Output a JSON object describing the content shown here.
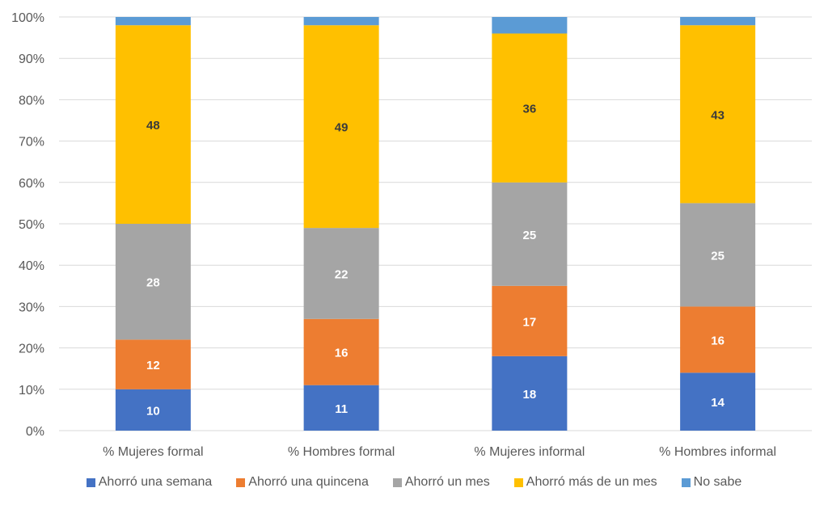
{
  "chart_data": {
    "type": "bar",
    "stacked": true,
    "normalized": true,
    "title": "",
    "xlabel": "",
    "ylabel": "",
    "ylim": [
      0,
      100
    ],
    "y_ticks": [
      "0%",
      "10%",
      "20%",
      "30%",
      "40%",
      "50%",
      "60%",
      "70%",
      "80%",
      "90%",
      "100%"
    ],
    "grid": true,
    "legend_position": "bottom",
    "categories": [
      "% Mujeres formal",
      "% Hombres formal",
      "% Mujeres informal",
      "% Hombres informal"
    ],
    "series": [
      {
        "name": "Ahorró una semana",
        "color": "#4472C4",
        "label_color": "#FFFFFF",
        "show_labels": true,
        "values": [
          10,
          11,
          18,
          14
        ]
      },
      {
        "name": "Ahorró una quincena",
        "color": "#ED7D31",
        "label_color": "#FFFFFF",
        "show_labels": true,
        "values": [
          12,
          16,
          17,
          16
        ]
      },
      {
        "name": "Ahorró un mes",
        "color": "#A5A5A5",
        "label_color": "#FFFFFF",
        "show_labels": true,
        "values": [
          28,
          22,
          25,
          25
        ]
      },
      {
        "name": "Ahorró más de un mes",
        "color": "#FFC000",
        "label_color": "#3B3B3B",
        "show_labels": true,
        "values": [
          48,
          49,
          36,
          43
        ]
      },
      {
        "name": "No sabe",
        "color": "#5B9BD5",
        "label_color": "#FFFFFF",
        "show_labels": false,
        "values": [
          2,
          2,
          4,
          2
        ]
      }
    ]
  }
}
